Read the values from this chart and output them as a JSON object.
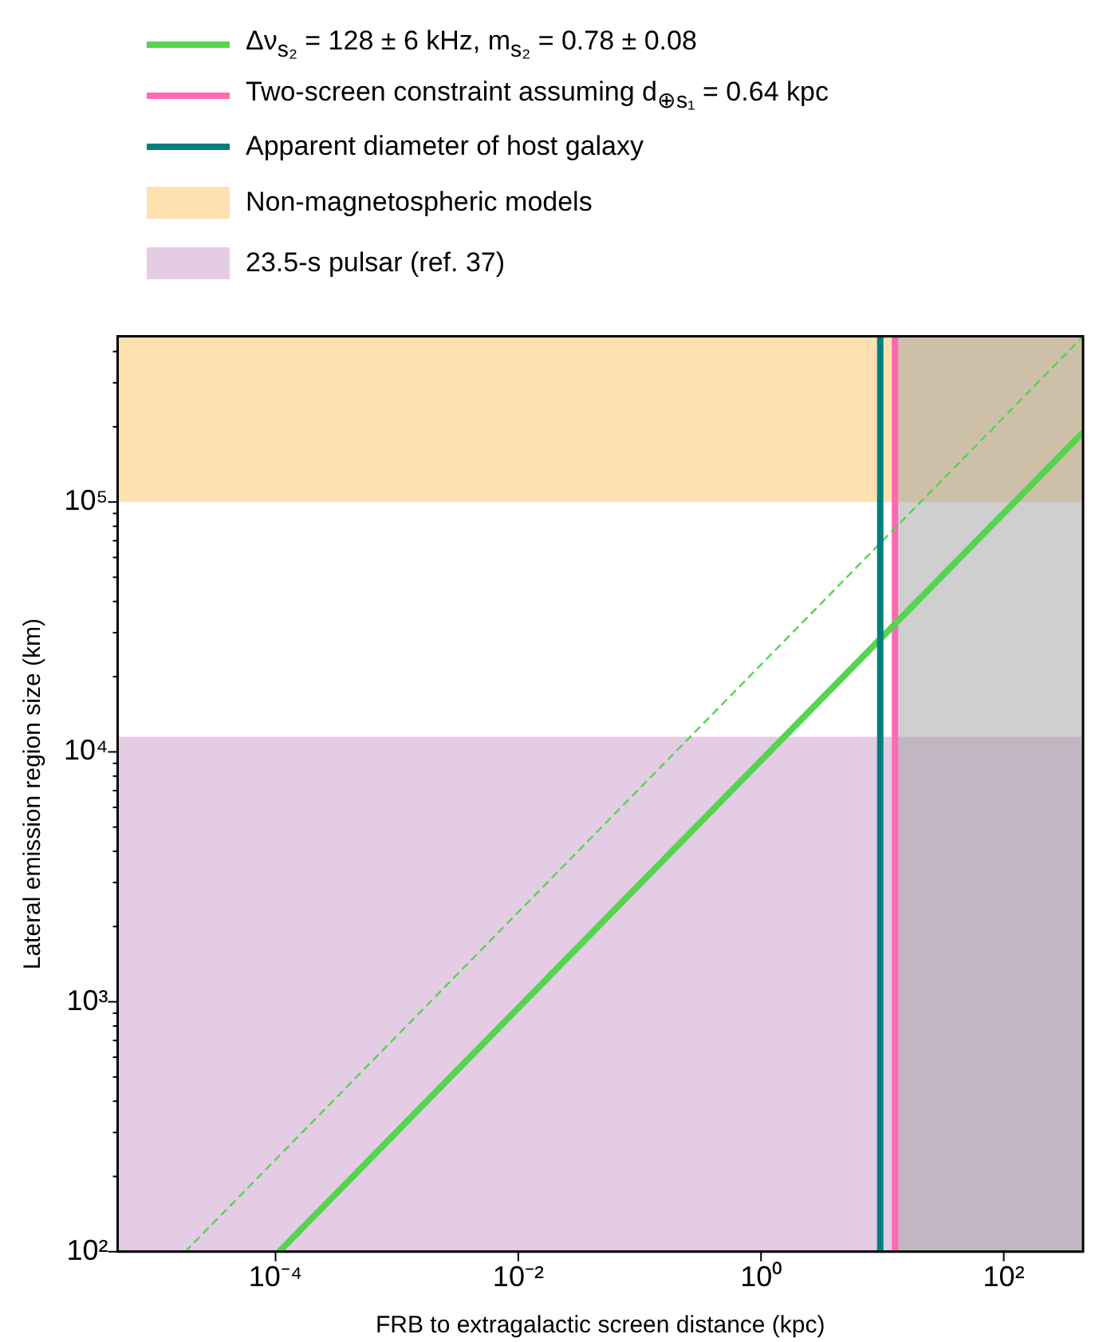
{
  "chart_data": {
    "type": "line",
    "xlabel": "FRB to extragalactic screen distance (kpc)",
    "ylabel": "Lateral emission region size (km)",
    "log": "xy",
    "grid": false,
    "legend": "top",
    "marker": "none",
    "xlim": [
      5e-06,
      450
    ],
    "ylim": [
      100,
      460000
    ],
    "xticks": [
      {
        "value": 0.0001,
        "label": "10⁻⁴"
      },
      {
        "value": 0.01,
        "label": "10⁻²"
      },
      {
        "value": 1,
        "label": "10⁰"
      },
      {
        "value": 100,
        "label": "10²"
      }
    ],
    "yticks": [
      {
        "value": 100,
        "label": "10²"
      },
      {
        "value": 200,
        "label": null
      },
      {
        "value": 300,
        "label": null
      },
      {
        "value": 400,
        "label": null
      },
      {
        "value": 500,
        "label": null
      },
      {
        "value": 600,
        "label": null
      },
      {
        "value": 700,
        "label": null
      },
      {
        "value": 800,
        "label": null
      },
      {
        "value": 900,
        "label": null
      },
      {
        "value": 1000,
        "label": "10³"
      },
      {
        "value": 2000,
        "label": null
      },
      {
        "value": 3000,
        "label": null
      },
      {
        "value": 4000,
        "label": null
      },
      {
        "value": 5000,
        "label": null
      },
      {
        "value": 6000,
        "label": null
      },
      {
        "value": 7000,
        "label": null
      },
      {
        "value": 8000,
        "label": null
      },
      {
        "value": 9000,
        "label": null
      },
      {
        "value": 10000,
        "label": "10⁴"
      },
      {
        "value": 20000,
        "label": null
      },
      {
        "value": 30000,
        "label": null
      },
      {
        "value": 40000,
        "label": null
      },
      {
        "value": 50000,
        "label": null
      },
      {
        "value": 60000,
        "label": null
      },
      {
        "value": 70000,
        "label": null
      },
      {
        "value": 80000,
        "label": null
      },
      {
        "value": 90000,
        "label": null
      },
      {
        "value": 100000,
        "label": "10⁵"
      },
      {
        "value": 200000,
        "label": null
      },
      {
        "value": 300000,
        "label": null
      },
      {
        "value": 400000,
        "label": null
      }
    ],
    "series": [
      {
        "name": "Δν$_{s₂}$ = 128 ± 6 kHz, m$_{s₂}$ = 0.78 ± 0.08",
        "color": "#55d44f",
        "x": [
          0.000107,
          450
        ],
        "values": [
          100,
          190000
        ],
        "line_style": "solid"
      },
      {
        "color": "#55d44f",
        "x": [
          1.8e-05,
          450
        ],
        "values": [
          100,
          460000
        ],
        "line_style": "dashed"
      },
      {
        "name": "Two-screen constraint assuming d$_{⊕s₁}$ = 0.64 kpc",
        "color": "#ff69b4",
        "x": [
          12.7,
          12.7
        ],
        "values": [
          100,
          460000
        ],
        "line_style": "solid"
      }
    ],
    "ref_lines": [
      {
        "axis": "x",
        "value": 9.6,
        "label": "Apparent diameter of host galaxy",
        "color": "#00807c"
      }
    ],
    "bands": [
      {
        "axis": "y",
        "from": 100000,
        "to": 460000,
        "label": "Non-magnetospheric models",
        "color": "#fcc461"
      },
      {
        "axis": "y",
        "from": 100,
        "to": 11500,
        "label": "23.5-s pulsar (ref. 37)",
        "color": "#cc99cc"
      },
      {
        "axis": "x",
        "from": 12.7,
        "to": 450,
        "color": "#a0a0a0"
      }
    ]
  }
}
